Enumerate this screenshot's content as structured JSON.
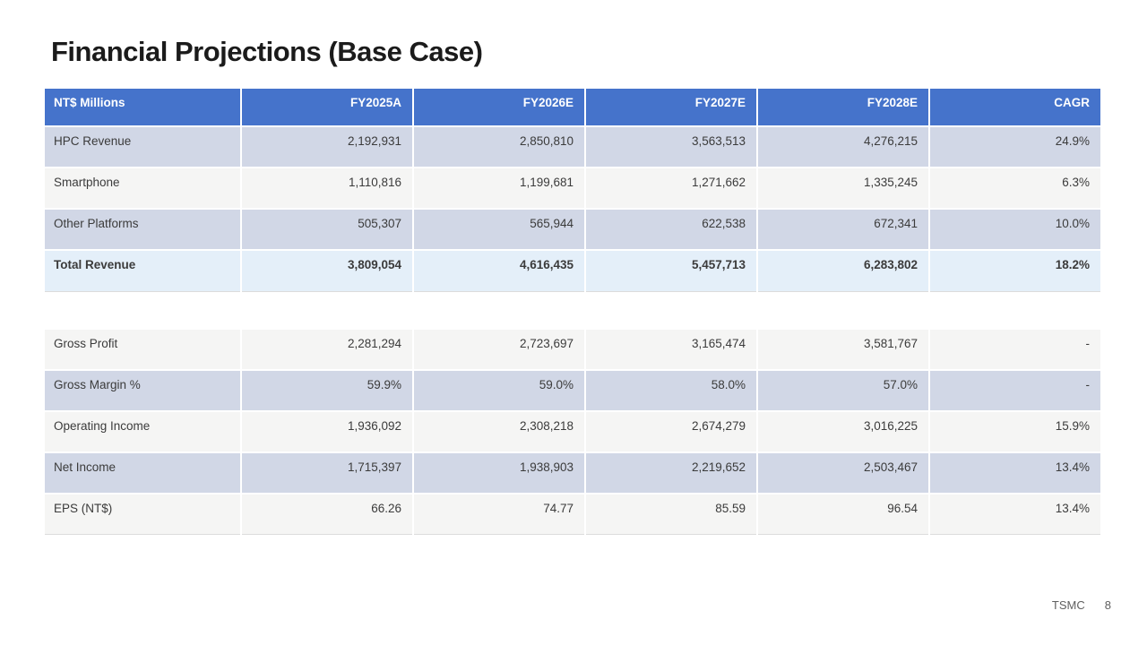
{
  "slide": {
    "title": "Financial Projections (Base Case)",
    "footer": {
      "brand": "TSMC",
      "page_number": "8"
    }
  },
  "colors": {
    "header_bg": "#4573CB",
    "row_alt_bg": "#D1D7E6",
    "row_bg": "#F5F5F4",
    "total_row_bg": "#E4EFF9",
    "title_color": "#1B1B1B",
    "cell_text": "#3B3B3B",
    "footer_text": "#5F5F5F"
  },
  "table": {
    "columns": [
      "NT$ Millions",
      "FY2025A",
      "FY2026E",
      "FY2027E",
      "FY2028E",
      "CAGR"
    ],
    "revenue_rows": [
      {
        "label": "HPC Revenue",
        "values": [
          "2,192,931",
          "2,850,810",
          "3,563,513",
          "4,276,215",
          "24.9%"
        ],
        "style": "alt"
      },
      {
        "label": "Smartphone",
        "values": [
          "1,110,816",
          "1,199,681",
          "1,271,662",
          "1,335,245",
          "6.3%"
        ],
        "style": "plain"
      },
      {
        "label": "Other Platforms",
        "values": [
          "505,307",
          "565,944",
          "622,538",
          "672,341",
          "10.0%"
        ],
        "style": "alt"
      },
      {
        "label": "Total Revenue",
        "values": [
          "3,809,054",
          "4,616,435",
          "5,457,713",
          "6,283,802",
          "18.2%"
        ],
        "style": "total"
      }
    ],
    "profitability_rows": [
      {
        "label": "Gross Profit",
        "values": [
          "2,281,294",
          "2,723,697",
          "3,165,474",
          "3,581,767",
          "-"
        ],
        "style": "plain"
      },
      {
        "label": "Gross Margin %",
        "values": [
          "59.9%",
          "59.0%",
          "58.0%",
          "57.0%",
          "-"
        ],
        "style": "alt"
      },
      {
        "label": "Operating Income",
        "values": [
          "1,936,092",
          "2,308,218",
          "2,674,279",
          "3,016,225",
          "15.9%"
        ],
        "style": "plain"
      },
      {
        "label": "Net Income",
        "values": [
          "1,715,397",
          "1,938,903",
          "2,219,652",
          "2,503,467",
          "13.4%"
        ],
        "style": "alt"
      },
      {
        "label": "EPS (NT$)",
        "values": [
          "66.26",
          "74.77",
          "85.59",
          "96.54",
          "13.4%"
        ],
        "style": "plain"
      }
    ]
  }
}
